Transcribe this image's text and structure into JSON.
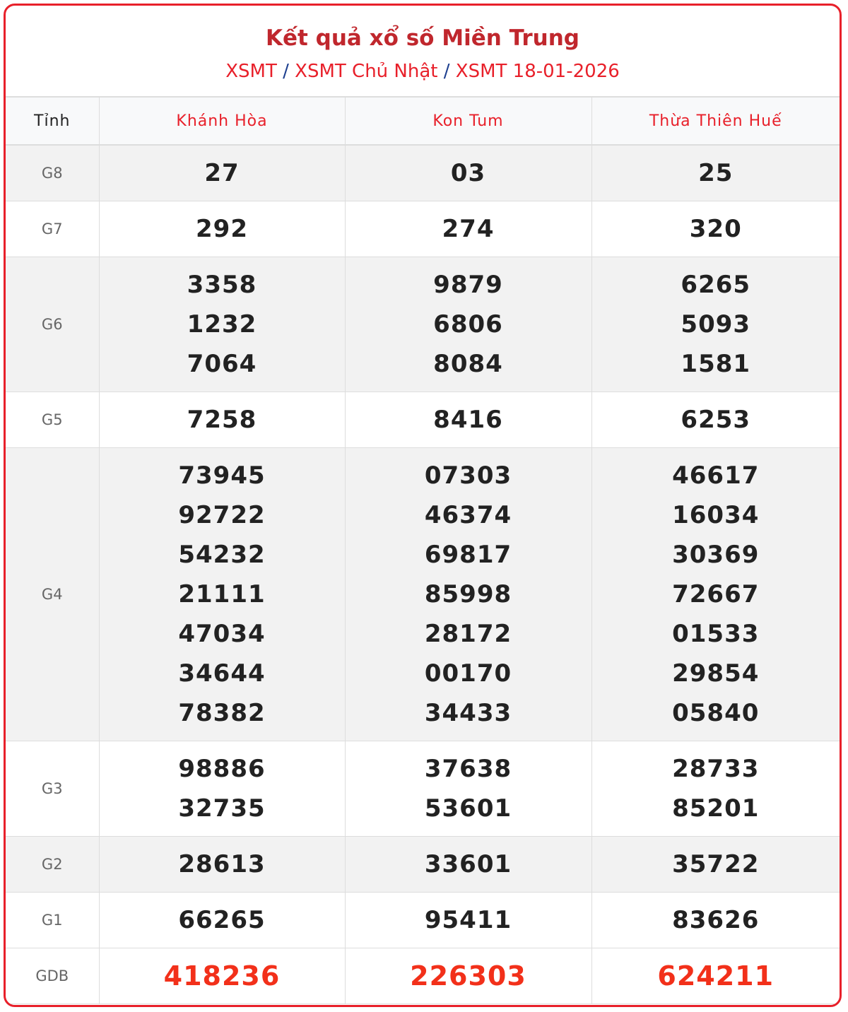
{
  "header": {
    "title": "Kết quả xổ số Miền Trung",
    "breadcrumb": [
      "XSMT",
      "XSMT Chủ Nhật",
      "XSMT 18-01-2026"
    ],
    "separator": "/"
  },
  "colors": {
    "accent": "#e8202a",
    "title": "#c0272d",
    "special_prize": "#f2301a"
  },
  "table": {
    "corner": "Tỉnh",
    "provinces": [
      "Khánh Hòa",
      "Kon Tum",
      "Thừa Thiên Huế"
    ],
    "rows": [
      {
        "label": "G8",
        "values": [
          [
            "27"
          ],
          [
            "03"
          ],
          [
            "25"
          ]
        ]
      },
      {
        "label": "G7",
        "values": [
          [
            "292"
          ],
          [
            "274"
          ],
          [
            "320"
          ]
        ]
      },
      {
        "label": "G6",
        "values": [
          [
            "3358",
            "1232",
            "7064"
          ],
          [
            "9879",
            "6806",
            "8084"
          ],
          [
            "6265",
            "5093",
            "1581"
          ]
        ]
      },
      {
        "label": "G5",
        "values": [
          [
            "7258"
          ],
          [
            "8416"
          ],
          [
            "6253"
          ]
        ]
      },
      {
        "label": "G4",
        "values": [
          [
            "73945",
            "92722",
            "54232",
            "21111",
            "47034",
            "34644",
            "78382"
          ],
          [
            "07303",
            "46374",
            "69817",
            "85998",
            "28172",
            "00170",
            "34433"
          ],
          [
            "46617",
            "16034",
            "30369",
            "72667",
            "01533",
            "29854",
            "05840"
          ]
        ]
      },
      {
        "label": "G3",
        "values": [
          [
            "98886",
            "32735"
          ],
          [
            "37638",
            "53601"
          ],
          [
            "28733",
            "85201"
          ]
        ]
      },
      {
        "label": "G2",
        "values": [
          [
            "28613"
          ],
          [
            "33601"
          ],
          [
            "35722"
          ]
        ]
      },
      {
        "label": "G1",
        "values": [
          [
            "66265"
          ],
          [
            "95411"
          ],
          [
            "83626"
          ]
        ]
      },
      {
        "label": "GDB",
        "values": [
          [
            "418236"
          ],
          [
            "226303"
          ],
          [
            "624211"
          ]
        ]
      }
    ]
  }
}
